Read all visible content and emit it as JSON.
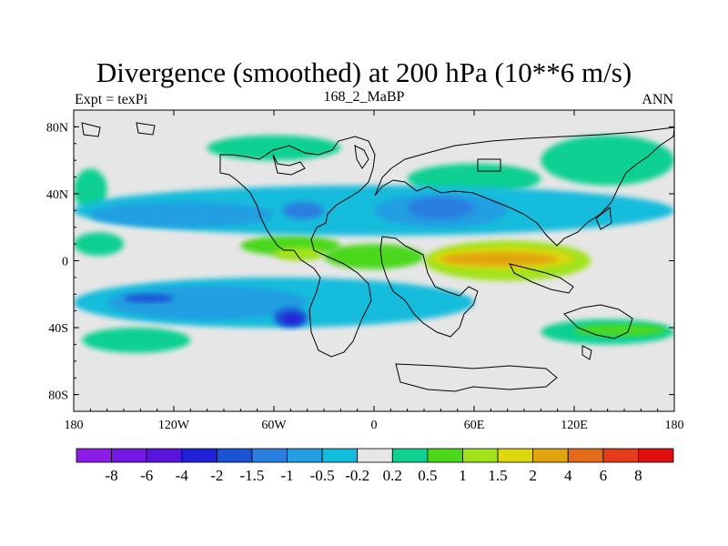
{
  "chart_data": {
    "type": "heatmap",
    "title": "Divergence (smoothed) at 200 hPa (10**6 m/s)",
    "subtitle_left": "Expt = texPi",
    "subtitle_center": "168_2_MaBP",
    "subtitle_right": "ANN",
    "xlim": [
      -180,
      180
    ],
    "ylim": [
      -90,
      90
    ],
    "x_ticks": [
      {
        "value": -180,
        "label": "180"
      },
      {
        "value": -120,
        "label": "120W"
      },
      {
        "value": -60,
        "label": "60W"
      },
      {
        "value": 0,
        "label": "0"
      },
      {
        "value": 60,
        "label": "60E"
      },
      {
        "value": 120,
        "label": "120E"
      },
      {
        "value": 180,
        "label": "180"
      }
    ],
    "y_ticks": [
      {
        "value": 80,
        "label": "80N"
      },
      {
        "value": 40,
        "label": "40N"
      },
      {
        "value": 0,
        "label": "0"
      },
      {
        "value": -40,
        "label": "40S"
      },
      {
        "value": -80,
        "label": "80S"
      }
    ],
    "colorbar": {
      "labels": [
        "-8",
        "-6",
        "-4",
        "-2",
        "-1.5",
        "-1",
        "-0.5",
        "-0.2",
        "0.2",
        "0.5",
        "1",
        "1.5",
        "2",
        "4",
        "6",
        "8"
      ],
      "colors": [
        "#8b1ce6",
        "#7217e4",
        "#5a15dc",
        "#2020d8",
        "#1c52d6",
        "#2a7ee0",
        "#249ee2",
        "#12bcdc",
        "#e6e6e6",
        "#10d092",
        "#4cd81a",
        "#a2e21a",
        "#dcd80e",
        "#e2a40e",
        "#e26a18",
        "#e23c18",
        "#e01010"
      ]
    },
    "regions": [
      {
        "level": "0.2",
        "color": "#10d092",
        "lon": [
          -180,
          -160
        ],
        "lat": [
          30,
          55
        ]
      },
      {
        "level": "0.2",
        "color": "#10d092",
        "lon": [
          -175,
          -110
        ],
        "lat": [
          -55,
          -40
        ]
      },
      {
        "level": "0.2",
        "color": "#10d092",
        "lon": [
          -100,
          -20
        ],
        "lat": [
          60,
          75
        ]
      },
      {
        "level": "0.2",
        "color": "#10d092",
        "lon": [
          20,
          100
        ],
        "lat": [
          40,
          58
        ]
      },
      {
        "level": "0.2",
        "color": "#10d092",
        "lon": [
          100,
          180
        ],
        "lat": [
          45,
          75
        ]
      },
      {
        "level": "0.2",
        "color": "#10d092",
        "lon": [
          100,
          180
        ],
        "lat": [
          -50,
          -35
        ]
      },
      {
        "level": "0.2",
        "color": "#10d092",
        "lon": [
          -180,
          -150
        ],
        "lat": [
          3,
          17
        ]
      },
      {
        "level": "0.5",
        "color": "#4cd81a",
        "lon": [
          120,
          175
        ],
        "lat": [
          -45,
          -38
        ]
      },
      {
        "level": "0.5",
        "color": "#4cd81a",
        "lon": [
          -80,
          -20
        ],
        "lat": [
          3,
          15
        ]
      },
      {
        "level": "0.5",
        "color": "#4cd81a",
        "lon": [
          -30,
          30
        ],
        "lat": [
          -5,
          10
        ]
      },
      {
        "level": "1",
        "color": "#a2e21a",
        "lon": [
          -60,
          -30
        ],
        "lat": [
          0,
          8
        ]
      },
      {
        "level": "1",
        "color": "#a2e21a",
        "lon": [
          30,
          130
        ],
        "lat": [
          -12,
          12
        ]
      },
      {
        "level": "1.5",
        "color": "#dcd80e",
        "lon": [
          35,
          120
        ],
        "lat": [
          -5,
          8
        ]
      },
      {
        "level": "2",
        "color": "#e2a40e",
        "lon": [
          40,
          110
        ],
        "lat": [
          -3,
          5
        ]
      },
      {
        "level": "-0.2",
        "color": "#12bcdc",
        "lon": [
          -180,
          180
        ],
        "lat": [
          15,
          45
        ]
      },
      {
        "level": "-0.2",
        "color": "#12bcdc",
        "lon": [
          -180,
          60
        ],
        "lat": [
          -40,
          -10
        ]
      },
      {
        "level": "-0.5",
        "color": "#249ee2",
        "lon": [
          -170,
          -60
        ],
        "lat": [
          20,
          35
        ]
      },
      {
        "level": "-0.5",
        "color": "#249ee2",
        "lon": [
          0,
          80
        ],
        "lat": [
          20,
          40
        ]
      },
      {
        "level": "-0.5",
        "color": "#249ee2",
        "lon": [
          -160,
          -40
        ],
        "lat": [
          -35,
          -15
        ]
      },
      {
        "level": "-1",
        "color": "#2a7ee0",
        "lon": [
          -55,
          -30
        ],
        "lat": [
          25,
          35
        ]
      },
      {
        "level": "-1",
        "color": "#2a7ee0",
        "lon": [
          20,
          60
        ],
        "lat": [
          25,
          38
        ]
      },
      {
        "level": "-1.5",
        "color": "#1c52d6",
        "lon": [
          -150,
          -120
        ],
        "lat": [
          -25,
          -20
        ]
      },
      {
        "level": "-1.5",
        "color": "#1c52d6",
        "lon": [
          -60,
          -40
        ],
        "lat": [
          -40,
          -28
        ]
      },
      {
        "level": "-2",
        "color": "#2020d8",
        "lon": [
          -55,
          -43
        ],
        "lat": [
          -38,
          -32
        ]
      }
    ]
  }
}
